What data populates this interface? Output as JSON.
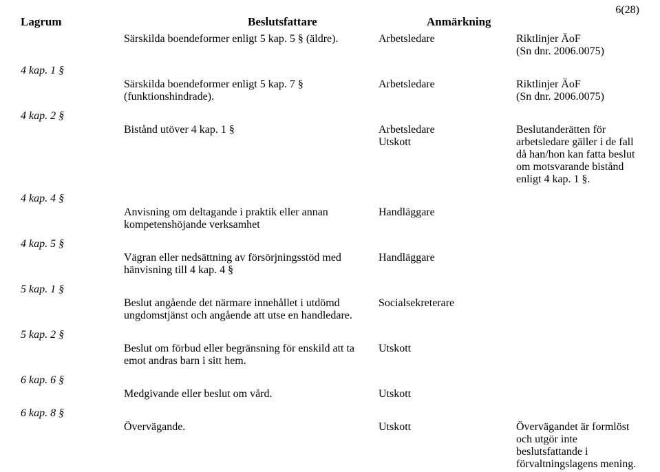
{
  "page_number": "6(28)",
  "header": {
    "col1": "Lagrum",
    "col2": "Beslutsfattare",
    "col3": "Anmärkning"
  },
  "rows": [
    {
      "lagrum": "",
      "text": "Särskilda boendeformer enligt 5 kap. 5 § (äldre).",
      "beslutsfattare": "Arbetsledare",
      "anmarkning": "Riktlinjer ÄoF\n(Sn dnr. 2006.0075)"
    },
    {
      "lagrum": "4 kap. 1 §",
      "text": "Särskilda boendeformer enligt 5 kap. 7 § (funktionshindrade).",
      "beslutsfattare": "Arbetsledare",
      "anmarkning": "Riktlinjer ÄoF\n(Sn dnr. 2006.0075)"
    },
    {
      "lagrum": "4 kap. 2 §",
      "text": "Bistånd utöver 4 kap. 1 §",
      "beslutsfattare": "Arbetsledare\nUtskott",
      "anmarkning": "Beslutanderätten för arbetsledare gäller i de fall då han/hon kan fatta beslut om motsvarande bistånd enligt 4 kap. 1 §."
    },
    {
      "lagrum": "4 kap. 4 §",
      "text": "Anvisning om deltagande i praktik eller annan kompetenshöjande verksamhet",
      "beslutsfattare": "Handläggare",
      "anmarkning": ""
    },
    {
      "lagrum": "4 kap. 5 §",
      "text": "Vägran eller nedsättning av försörjningsstöd med hänvisning till 4 kap. 4 §",
      "beslutsfattare": "Handläggare",
      "anmarkning": ""
    },
    {
      "lagrum": "5 kap. 1 §",
      "text": "Beslut angående det närmare innehållet i utdömd ungdomstjänst och angående att utse en handledare.",
      "beslutsfattare": "Socialsekreterare",
      "anmarkning": ""
    },
    {
      "lagrum": "5 kap. 2 §",
      "text": "Beslut om förbud eller begränsning för enskild att ta emot andras barn i sitt hem.",
      "beslutsfattare": "Utskott",
      "anmarkning": ""
    },
    {
      "lagrum": "6 kap. 6 §",
      "text": "Medgivande eller beslut om vård.",
      "beslutsfattare": "Utskott",
      "anmarkning": ""
    },
    {
      "lagrum": "6 kap. 8 §",
      "text": "Övervägande.",
      "beslutsfattare": "Utskott",
      "anmarkning": "Övervägandet är formlöst och utgör inte beslutsfattande i förvaltningslagens mening."
    }
  ]
}
